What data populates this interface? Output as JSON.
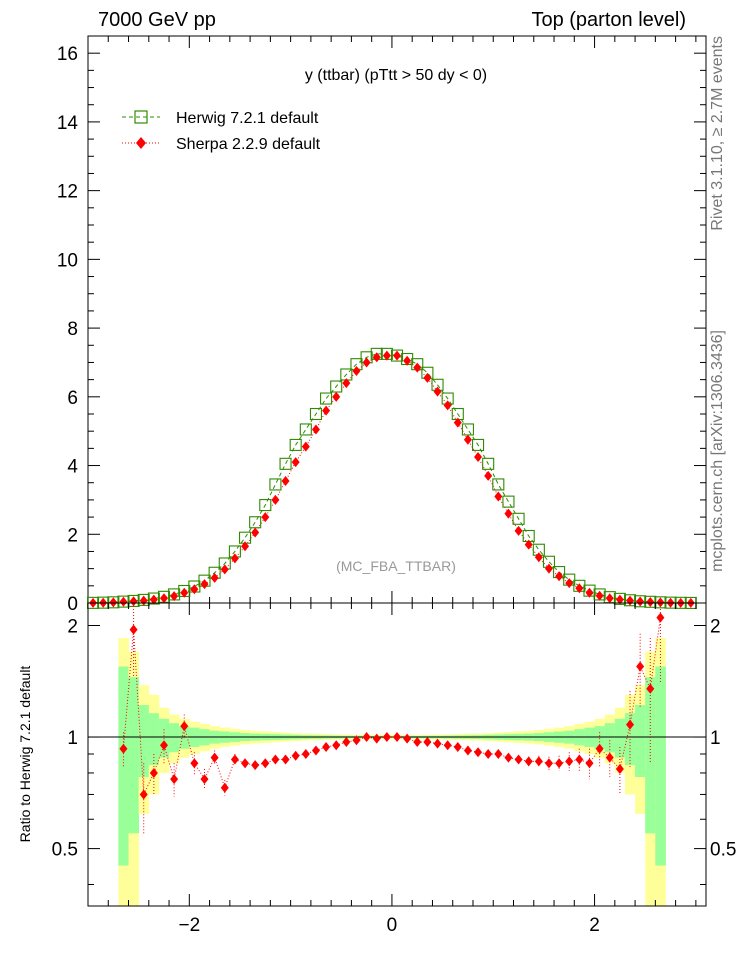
{
  "header": {
    "left": "7000 GeV pp",
    "right": "Top (parton level)"
  },
  "side_labels": {
    "rivet": "Rivet 3.1.10, ≥ 2.7M events",
    "mcplots": "mcplots.cern.ch [arXiv:1306.3436]"
  },
  "colors": {
    "herwig": "#2e8b00",
    "sherpa": "#ff0000",
    "band_inner": "#99ff99",
    "band_outer": "#ffff99",
    "watermark": "#999999"
  },
  "chart_data": [
    {
      "type": "scatter",
      "title": "y (ttbar) (pTtt > 50 dy < 0)",
      "watermark": "(MC_FBA_TTBAR)",
      "xlim": [
        -3.0,
        3.1
      ],
      "ylim": [
        0,
        16.5
      ],
      "y_ticks": [
        0,
        2,
        4,
        6,
        8,
        10,
        12,
        14,
        16
      ],
      "legend_position": "top-left",
      "x": [
        -2.95,
        -2.85,
        -2.75,
        -2.65,
        -2.55,
        -2.45,
        -2.35,
        -2.25,
        -2.15,
        -2.05,
        -1.95,
        -1.85,
        -1.75,
        -1.65,
        -1.55,
        -1.45,
        -1.35,
        -1.25,
        -1.15,
        -1.05,
        -0.95,
        -0.85,
        -0.75,
        -0.65,
        -0.55,
        -0.45,
        -0.35,
        -0.25,
        -0.15,
        -0.05,
        0.05,
        0.15,
        0.25,
        0.35,
        0.45,
        0.55,
        0.65,
        0.75,
        0.85,
        0.95,
        1.05,
        1.15,
        1.25,
        1.35,
        1.45,
        1.55,
        1.65,
        1.75,
        1.85,
        1.95,
        2.05,
        2.15,
        2.25,
        2.35,
        2.45,
        2.55,
        2.65,
        2.75,
        2.85,
        2.95
      ],
      "series": [
        {
          "name": "Herwig 7.2.1 default",
          "marker": "open-square",
          "line": "dashed",
          "values": [
            0.004,
            0.01,
            0.02,
            0.04,
            0.06,
            0.09,
            0.13,
            0.18,
            0.25,
            0.35,
            0.48,
            0.65,
            0.88,
            1.15,
            1.5,
            1.9,
            2.35,
            2.85,
            3.45,
            4.05,
            4.6,
            5.05,
            5.5,
            5.95,
            6.3,
            6.65,
            6.95,
            7.15,
            7.25,
            7.25,
            7.2,
            7.1,
            6.95,
            6.7,
            6.35,
            5.95,
            5.5,
            5.05,
            4.6,
            4.05,
            3.45,
            2.95,
            2.45,
            1.95,
            1.55,
            1.2,
            0.9,
            0.68,
            0.5,
            0.36,
            0.25,
            0.17,
            0.12,
            0.08,
            0.05,
            0.035,
            0.02,
            0.01,
            0.005,
            0.002
          ]
        },
        {
          "name": "Sherpa 2.2.9 default",
          "marker": "filled-diamond",
          "line": "dotted",
          "values": [
            0.004,
            0.009,
            0.018,
            0.035,
            0.05,
            0.07,
            0.1,
            0.14,
            0.2,
            0.3,
            0.4,
            0.55,
            0.73,
            0.98,
            1.3,
            1.65,
            2.05,
            2.5,
            3.0,
            3.55,
            4.1,
            4.55,
            5.05,
            5.6,
            6.0,
            6.4,
            6.75,
            7.0,
            7.15,
            7.2,
            7.2,
            7.05,
            6.85,
            6.55,
            6.15,
            5.75,
            5.25,
            4.75,
            4.25,
            3.7,
            3.1,
            2.6,
            2.1,
            1.7,
            1.33,
            1.0,
            0.78,
            0.58,
            0.43,
            0.3,
            0.21,
            0.14,
            0.1,
            0.07,
            0.045,
            0.03,
            0.017,
            0.008,
            0.004,
            0.002
          ]
        }
      ]
    },
    {
      "type": "scatter",
      "ylabel": "Ratio to Herwig 7.2.1 default",
      "xlim": [
        -3.0,
        3.1
      ],
      "ylim": [
        0.35,
        2.3
      ],
      "x_ticks": [
        -2,
        0,
        2
      ],
      "y_ticks": [
        0.5,
        1,
        2
      ],
      "reference": 1,
      "x": [
        -2.65,
        -2.55,
        -2.45,
        -2.35,
        -2.25,
        -2.15,
        -2.05,
        -1.95,
        -1.85,
        -1.75,
        -1.65,
        -1.55,
        -1.45,
        -1.35,
        -1.25,
        -1.15,
        -1.05,
        -0.95,
        -0.85,
        -0.75,
        -0.65,
        -0.55,
        -0.45,
        -0.35,
        -0.25,
        -0.15,
        -0.05,
        0.05,
        0.15,
        0.25,
        0.35,
        0.45,
        0.55,
        0.65,
        0.75,
        0.85,
        0.95,
        1.05,
        1.15,
        1.25,
        1.35,
        1.45,
        1.55,
        1.65,
        1.75,
        1.85,
        1.95,
        2.05,
        2.15,
        2.25,
        2.35,
        2.45,
        2.55,
        2.65
      ],
      "series": [
        {
          "name": "Sherpa 2.2.9 default",
          "values": [
            0.93,
            1.95,
            0.7,
            0.8,
            0.95,
            0.77,
            1.07,
            0.85,
            0.77,
            0.88,
            0.73,
            0.87,
            0.85,
            0.84,
            0.85,
            0.87,
            0.87,
            0.89,
            0.9,
            0.92,
            0.94,
            0.95,
            0.97,
            0.98,
            1.0,
            0.99,
            1.0,
            1.0,
            0.99,
            0.97,
            0.97,
            0.96,
            0.95,
            0.94,
            0.92,
            0.91,
            0.9,
            0.9,
            0.88,
            0.87,
            0.86,
            0.86,
            0.85,
            0.85,
            0.86,
            0.87,
            0.85,
            0.93,
            0.88,
            0.82,
            1.08,
            1.55,
            1.35,
            2.1
          ],
          "errors": [
            0.1,
            0.5,
            0.15,
            0.1,
            0.1,
            0.08,
            0.08,
            0.06,
            0.05,
            0.04,
            0.035,
            0.03,
            0.025,
            0.02,
            0.02,
            0.015,
            0.015,
            0.012,
            0.01,
            0.01,
            0.01,
            0.01,
            0.01,
            0.01,
            0.01,
            0.01,
            0.01,
            0.01,
            0.01,
            0.01,
            0.01,
            0.01,
            0.01,
            0.01,
            0.01,
            0.012,
            0.015,
            0.015,
            0.02,
            0.02,
            0.025,
            0.03,
            0.035,
            0.04,
            0.05,
            0.06,
            0.08,
            0.1,
            0.1,
            0.12,
            0.25,
            0.35,
            0.5,
            0.7
          ]
        }
      ],
      "band": {
        "x": [
          -2.7,
          -2.6,
          -2.5,
          -2.4,
          -2.3,
          -2.2,
          -2.1,
          -2.0,
          -1.9,
          -1.8,
          -1.7,
          -1.6,
          -1.5,
          -1.4,
          -1.3,
          -1.2,
          -1.1,
          -1.0,
          -0.9,
          -0.8,
          -0.7,
          -0.6,
          -0.5,
          -0.4,
          -0.3,
          -0.2,
          -0.1,
          0.0,
          0.1,
          0.2,
          0.3,
          0.4,
          0.5,
          0.6,
          0.7,
          0.8,
          0.9,
          1.0,
          1.1,
          1.2,
          1.3,
          1.4,
          1.5,
          1.6,
          1.7,
          1.8,
          1.9,
          2.0,
          2.1,
          2.2,
          2.3,
          2.4,
          2.5,
          2.6,
          2.7
        ],
        "inner": [
          0.55,
          0.45,
          0.22,
          0.16,
          0.12,
          0.09,
          0.07,
          0.06,
          0.05,
          0.04,
          0.035,
          0.03,
          0.025,
          0.022,
          0.02,
          0.018,
          0.016,
          0.014,
          0.012,
          0.011,
          0.01,
          0.009,
          0.008,
          0.008,
          0.007,
          0.007,
          0.007,
          0.007,
          0.007,
          0.007,
          0.008,
          0.008,
          0.009,
          0.01,
          0.011,
          0.012,
          0.014,
          0.016,
          0.018,
          0.02,
          0.022,
          0.025,
          0.03,
          0.035,
          0.04,
          0.05,
          0.06,
          0.07,
          0.09,
          0.12,
          0.16,
          0.22,
          0.45,
          0.55
        ],
        "outer": [
          0.85,
          0.7,
          0.38,
          0.3,
          0.2,
          0.15,
          0.12,
          0.1,
          0.085,
          0.07,
          0.06,
          0.052,
          0.045,
          0.04,
          0.036,
          0.032,
          0.028,
          0.025,
          0.022,
          0.02,
          0.018,
          0.016,
          0.015,
          0.014,
          0.013,
          0.013,
          0.013,
          0.013,
          0.013,
          0.013,
          0.014,
          0.015,
          0.016,
          0.018,
          0.02,
          0.022,
          0.025,
          0.028,
          0.032,
          0.036,
          0.04,
          0.045,
          0.052,
          0.06,
          0.07,
          0.085,
          0.1,
          0.12,
          0.15,
          0.2,
          0.3,
          0.38,
          0.7,
          0.85
        ]
      }
    }
  ]
}
